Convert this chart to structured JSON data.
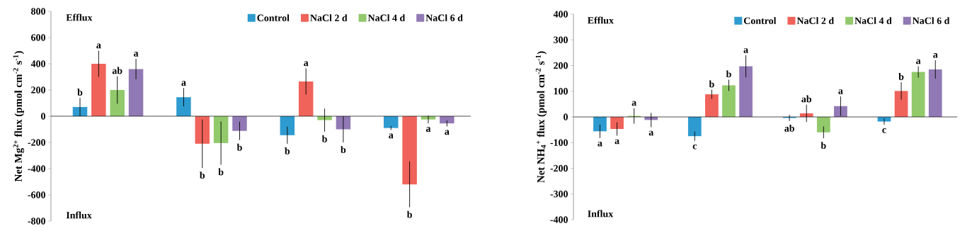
{
  "chart_data": [
    {
      "type": "bar",
      "categories": [
        null,
        null,
        null,
        null
      ],
      "ylabel": "Net Mg$^{2+}$ flux (pmol cm$^{-2}$ s$^{-1}$)",
      "ylim": [
        -800,
        800
      ],
      "yticks": [
        -800,
        -600,
        -400,
        -200,
        0,
        200,
        400,
        600,
        800
      ],
      "tick_labels": "y",
      "legend": "top",
      "annotations": [
        "Efflux",
        "Influx"
      ],
      "series": [
        {
          "name": "Control",
          "color": "#2e9bd0",
          "values": [
            70,
            145,
            -145,
            -90
          ],
          "errors": [
            70,
            70,
            65,
            15
          ],
          "value_labels": [
            "b",
            "a",
            "b",
            "a"
          ]
        },
        {
          "name": "NaCl 2 d",
          "color": "#f0635a",
          "values": [
            400,
            -210,
            265,
            -520
          ],
          "errors": [
            100,
            185,
            100,
            175
          ],
          "value_labels": [
            "a",
            "b",
            "a",
            "b"
          ]
        },
        {
          "name": "NaCl 4 d",
          "color": "#92c96b",
          "values": [
            200,
            -205,
            -30,
            -25
          ],
          "errors": [
            105,
            165,
            88,
            30
          ],
          "value_labels": [
            "ab",
            "b",
            "b",
            "a"
          ]
        },
        {
          "name": "NaCl 6 d",
          "color": "#9179b5",
          "values": [
            360,
            -112,
            -100,
            -55
          ],
          "errors": [
            78,
            70,
            100,
            23
          ],
          "value_labels": [
            "a",
            "b",
            "b",
            "a"
          ]
        }
      ]
    },
    {
      "type": "bar",
      "categories": [
        null,
        null,
        null,
        null
      ],
      "ylabel": "Net NH$_{4}$$^{+}$ flux (pmol cm$^{-2}$ s$^{-1}$)",
      "ylim": [
        -400,
        400
      ],
      "yticks": [
        -400,
        -300,
        -200,
        -100,
        0,
        100,
        200,
        300,
        400
      ],
      "tick_labels": "y",
      "legend": "top",
      "annotations": [
        "Efflux",
        "Influx"
      ],
      "series": [
        {
          "name": "Control",
          "color": "#2e9bd0",
          "values": [
            -56,
            -75,
            -4,
            -18
          ],
          "errors": [
            26,
            18,
            12,
            12
          ],
          "value_labels": [
            "a",
            "c",
            "ab",
            "c"
          ]
        },
        {
          "name": "NaCl 2 d",
          "color": "#f0635a",
          "values": [
            -47,
            88,
            14,
            101
          ],
          "errors": [
            26,
            18,
            34,
            34
          ],
          "value_labels": [
            "a",
            "b",
            "ab",
            "b"
          ]
        },
        {
          "name": "NaCl 4 d",
          "color": "#92c96b",
          "values": [
            4,
            123,
            -60,
            175
          ],
          "errors": [
            30,
            22,
            23,
            22
          ],
          "value_labels": [
            "a",
            "b",
            "b",
            "a"
          ]
        },
        {
          "name": "NaCl 6 d",
          "color": "#9179b5",
          "values": [
            -12,
            197,
            42,
            185
          ],
          "errors": [
            28,
            43,
            38,
            36
          ],
          "value_labels": [
            "a",
            "a",
            "a",
            "a"
          ]
        }
      ]
    }
  ]
}
